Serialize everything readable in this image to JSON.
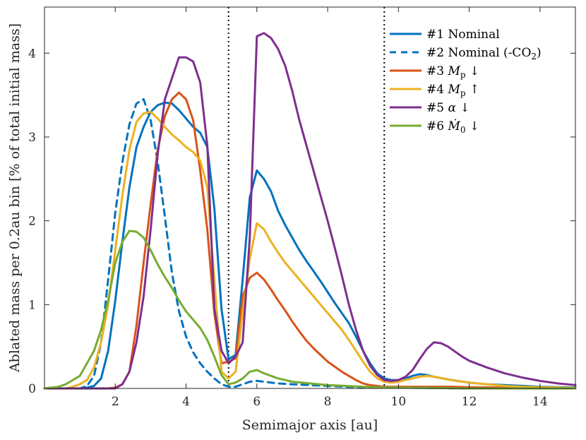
{
  "chart_data": {
    "type": "line",
    "title": "",
    "xlabel": "Semimajor axis [au]",
    "ylabel": "Ablated mass per 0.2au bin [% of total initial mass]",
    "xlim": [
      0,
      15
    ],
    "ylim": [
      0,
      4.55
    ],
    "xticks": [
      2,
      4,
      6,
      8,
      10,
      12,
      14
    ],
    "yticks": [
      0,
      1,
      2,
      3,
      4
    ],
    "grid": false,
    "legend_position": "top-right",
    "vlines": [
      5.2,
      9.6
    ],
    "series": [
      {
        "name": "#1 Nominal",
        "legend_prefix": "#1 ",
        "legend_text": "Nominal",
        "color": "#0072BD",
        "dash": "solid",
        "x": [
          0,
          1,
          1.2,
          1.4,
          1.6,
          1.8,
          2,
          2.2,
          2.4,
          2.6,
          2.8,
          3,
          3.2,
          3.4,
          3.6,
          3.8,
          4,
          4.2,
          4.4,
          4.6,
          4.8,
          5,
          5.2,
          5.4,
          5.6,
          5.8,
          6,
          6.2,
          6.4,
          6.6,
          6.8,
          7,
          7.2,
          7.4,
          7.6,
          7.8,
          8,
          8.2,
          8.4,
          8.6,
          8.8,
          9,
          9.2,
          9.4,
          9.6,
          9.8,
          10,
          10.2,
          10.4,
          10.6,
          10.8,
          11,
          11.5,
          12,
          12.5,
          13,
          13.5,
          14,
          14.5,
          15
        ],
        "y": [
          0,
          0,
          0.01,
          0.03,
          0.12,
          0.45,
          1.05,
          1.75,
          2.4,
          2.88,
          3.12,
          3.3,
          3.38,
          3.41,
          3.4,
          3.32,
          3.22,
          3.12,
          3.05,
          2.88,
          2.15,
          0.95,
          0.35,
          0.4,
          1.3,
          2.28,
          2.6,
          2.5,
          2.35,
          2.12,
          1.95,
          1.8,
          1.65,
          1.52,
          1.4,
          1.28,
          1.15,
          1.02,
          0.9,
          0.78,
          0.62,
          0.45,
          0.3,
          0.18,
          0.12,
          0.1,
          0.1,
          0.12,
          0.15,
          0.17,
          0.16,
          0.14,
          0.1,
          0.07,
          0.05,
          0.04,
          0.03,
          0.02,
          0.015,
          0.01
        ]
      },
      {
        "name": "#2 Nominal (-CO2)",
        "legend_prefix": "#2 ",
        "legend_text": "Nominal (-CO",
        "legend_sub": "2",
        "legend_suffix": ")",
        "color": "#0072BD",
        "dash": "dashed",
        "x": [
          0,
          1,
          1.2,
          1.4,
          1.6,
          1.8,
          2,
          2.2,
          2.4,
          2.6,
          2.8,
          3,
          3.2,
          3.4,
          3.6,
          3.8,
          4,
          4.2,
          4.4,
          4.6,
          4.8,
          5,
          5.2,
          5.4,
          5.6,
          5.8,
          6,
          6.2,
          6.4,
          6.6,
          7,
          7.5,
          8,
          8.5,
          9,
          9.5,
          10,
          12,
          15
        ],
        "y": [
          0,
          0,
          0.03,
          0.15,
          0.55,
          1.3,
          2.1,
          2.7,
          3.15,
          3.4,
          3.45,
          3.2,
          2.7,
          2.05,
          1.38,
          0.92,
          0.62,
          0.43,
          0.3,
          0.2,
          0.12,
          0.05,
          0.02,
          0.02,
          0.05,
          0.08,
          0.09,
          0.08,
          0.07,
          0.06,
          0.05,
          0.04,
          0.03,
          0.02,
          0.015,
          0.01,
          0.01,
          0,
          0
        ]
      },
      {
        "name": "#3 Mp ↓",
        "legend_prefix": "#3 ",
        "legend_italic": "M",
        "legend_sub": "p",
        "legend_suffix": " ↓",
        "color": "#D95319",
        "dash": "solid",
        "x": [
          0,
          1.6,
          1.8,
          2,
          2.2,
          2.4,
          2.6,
          2.8,
          3,
          3.2,
          3.4,
          3.6,
          3.8,
          4,
          4.2,
          4.4,
          4.6,
          4.8,
          5,
          5.2,
          5.4,
          5.6,
          5.8,
          6,
          6.2,
          6.4,
          6.6,
          6.8,
          7,
          7.2,
          7.4,
          7.6,
          7.8,
          8,
          8.2,
          8.4,
          8.6,
          8.8,
          9,
          9.2,
          9.4,
          9.6,
          9.8,
          10,
          10.5,
          11,
          11.5,
          12,
          13,
          14,
          15
        ],
        "y": [
          0,
          0,
          0,
          0.01,
          0.05,
          0.2,
          0.75,
          1.5,
          2.2,
          2.85,
          3.25,
          3.45,
          3.53,
          3.45,
          3.2,
          2.6,
          1.9,
          0.9,
          0.3,
          0.32,
          0.36,
          1.1,
          1.32,
          1.38,
          1.3,
          1.18,
          1.05,
          0.93,
          0.8,
          0.68,
          0.57,
          0.48,
          0.4,
          0.32,
          0.26,
          0.2,
          0.15,
          0.1,
          0.06,
          0.04,
          0.03,
          0.02,
          0.02,
          0.02,
          0.02,
          0.02,
          0.02,
          0.015,
          0.01,
          0.005,
          0
        ]
      },
      {
        "name": "#4 Mp ↑",
        "legend_prefix": "#4 ",
        "legend_italic": "M",
        "legend_sub": "p",
        "legend_suffix": " ↑",
        "color": "#EDB120",
        "dash": "solid",
        "x": [
          0,
          0.6,
          0.8,
          1,
          1.2,
          1.4,
          1.6,
          1.8,
          2,
          2.2,
          2.4,
          2.6,
          2.8,
          3,
          3.2,
          3.4,
          3.6,
          3.8,
          4,
          4.2,
          4.4,
          4.6,
          4.8,
          5,
          5.2,
          5.4,
          5.6,
          5.8,
          6,
          6.2,
          6.4,
          6.6,
          6.8,
          7,
          7.2,
          7.4,
          7.6,
          7.8,
          8,
          8.2,
          8.4,
          8.6,
          8.8,
          9,
          9.2,
          9.4,
          9.6,
          9.8,
          10,
          10.2,
          10.4,
          10.6,
          10.8,
          11,
          11.5,
          12,
          12.5,
          13,
          13.5,
          14,
          14.5,
          15
        ],
        "y": [
          0,
          0,
          0.02,
          0.05,
          0.1,
          0.25,
          0.55,
          1.0,
          1.65,
          2.3,
          2.85,
          3.18,
          3.28,
          3.3,
          3.22,
          3.12,
          3.03,
          2.96,
          2.88,
          2.82,
          2.72,
          2.4,
          1.3,
          0.2,
          0.12,
          0.2,
          0.9,
          1.55,
          1.97,
          1.9,
          1.75,
          1.62,
          1.5,
          1.4,
          1.3,
          1.2,
          1.1,
          1.0,
          0.9,
          0.8,
          0.7,
          0.58,
          0.45,
          0.32,
          0.2,
          0.12,
          0.08,
          0.07,
          0.08,
          0.1,
          0.12,
          0.14,
          0.15,
          0.14,
          0.1,
          0.07,
          0.05,
          0.03,
          0.02,
          0.015,
          0.01,
          0.005
        ]
      },
      {
        "name": "#5 α ↓",
        "legend_prefix": "#5 ",
        "legend_italic": "α",
        "legend_suffix": " ↓",
        "color": "#7E2F8E",
        "dash": "solid",
        "x": [
          0,
          2,
          2.2,
          2.4,
          2.6,
          2.8,
          3,
          3.2,
          3.4,
          3.6,
          3.8,
          4,
          4.2,
          4.4,
          4.6,
          4.8,
          5,
          5.2,
          5.4,
          5.6,
          5.8,
          6,
          6.2,
          6.4,
          6.6,
          6.8,
          7,
          7.2,
          7.4,
          7.6,
          7.8,
          8,
          8.2,
          8.4,
          8.6,
          8.8,
          9,
          9.2,
          9.4,
          9.6,
          9.8,
          10,
          10.2,
          10.4,
          10.6,
          10.8,
          11,
          11.2,
          11.4,
          11.6,
          11.8,
          12,
          12.5,
          13,
          13.5,
          14,
          14.5,
          15
        ],
        "y": [
          0,
          0,
          0.05,
          0.2,
          0.55,
          1.1,
          1.9,
          2.8,
          3.45,
          3.7,
          3.95,
          3.95,
          3.9,
          3.65,
          2.9,
          0.95,
          0.45,
          0.3,
          0.38,
          0.55,
          1.8,
          4.2,
          4.24,
          4.18,
          4.05,
          3.85,
          3.55,
          3.2,
          2.9,
          2.6,
          2.3,
          2.0,
          1.68,
          1.35,
          1.0,
          0.7,
          0.45,
          0.27,
          0.16,
          0.1,
          0.09,
          0.1,
          0.14,
          0.22,
          0.35,
          0.47,
          0.55,
          0.54,
          0.5,
          0.44,
          0.38,
          0.33,
          0.25,
          0.18,
          0.13,
          0.09,
          0.06,
          0.04
        ]
      },
      {
        "name": "#6 Ṁ0 ↓",
        "legend_prefix": "#6 ",
        "legend_italic": "Ṁ",
        "legend_sub": "0",
        "legend_suffix": " ↓",
        "color": "#77AC30",
        "dash": "solid",
        "x": [
          0,
          0.2,
          0.4,
          0.6,
          0.8,
          1,
          1.2,
          1.4,
          1.6,
          1.8,
          2,
          2.2,
          2.4,
          2.6,
          2.8,
          3,
          3.2,
          3.4,
          3.6,
          3.8,
          4,
          4.2,
          4.4,
          4.6,
          4.8,
          5,
          5.2,
          5.4,
          5.6,
          5.8,
          6,
          6.2,
          6.4,
          6.6,
          6.8,
          7,
          7.5,
          8,
          8.5,
          9,
          9.5,
          10,
          11,
          12,
          13,
          14,
          15
        ],
        "y": [
          0,
          0.01,
          0.02,
          0.05,
          0.1,
          0.15,
          0.3,
          0.45,
          0.7,
          1.05,
          1.5,
          1.75,
          1.88,
          1.87,
          1.8,
          1.65,
          1.48,
          1.33,
          1.2,
          1.05,
          0.92,
          0.82,
          0.72,
          0.58,
          0.38,
          0.16,
          0.05,
          0.07,
          0.12,
          0.2,
          0.22,
          0.18,
          0.15,
          0.12,
          0.1,
          0.08,
          0.06,
          0.04,
          0.03,
          0.02,
          0.015,
          0.01,
          0.005,
          0,
          0,
          0,
          0
        ]
      }
    ]
  }
}
